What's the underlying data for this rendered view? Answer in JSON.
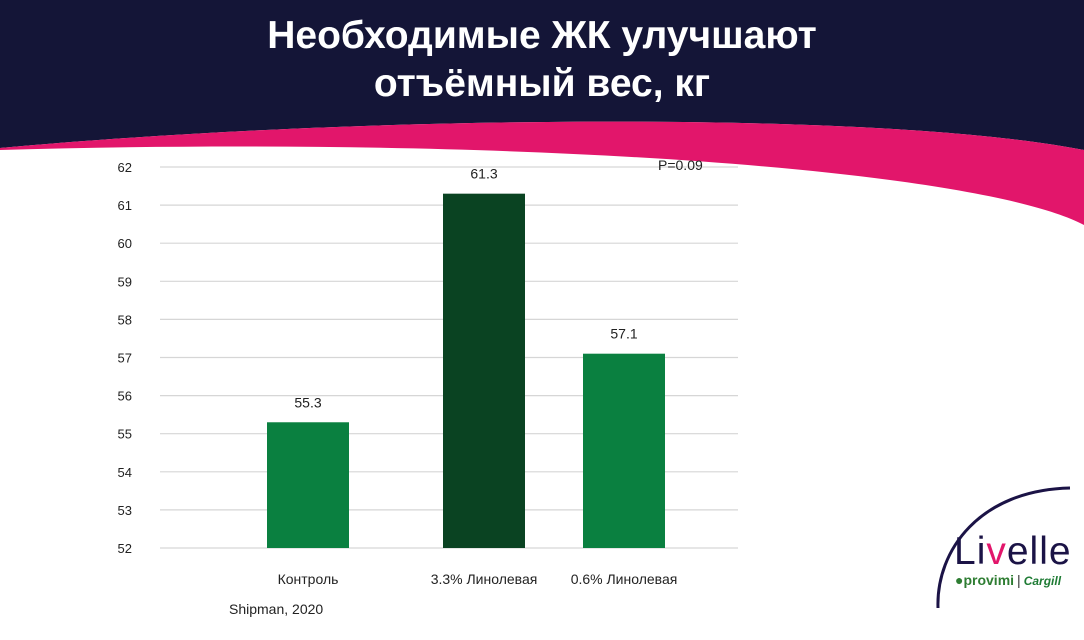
{
  "slide": {
    "title_line1": "Необходимые ЖК улучшают",
    "title_line2": "отъёмный вес, кг",
    "source": "Shipman, 2020"
  },
  "colors": {
    "header_bg": "#141537",
    "header_accent": "#e2166b",
    "bar_light": "#0a8040",
    "bar_dark": "#0a4322",
    "logo_arc": "#1b1346",
    "logo_accent": "#e2166b"
  },
  "chart_data": {
    "type": "bar",
    "categories": [
      "Контроль",
      "3.3% Линолевая",
      "0.6% Линолевая"
    ],
    "values": [
      55.3,
      61.3,
      57.1
    ],
    "data_labels": [
      "55.3",
      "61.3",
      "57.1"
    ],
    "bar_colors": [
      "#0a8040",
      "#0a4322",
      "#0a8040"
    ],
    "yticks": [
      "52",
      "53",
      "54",
      "55",
      "56",
      "57",
      "58",
      "59",
      "60",
      "61",
      "62"
    ],
    "ylim": [
      52,
      62
    ],
    "grid": true,
    "annotation": "P=0.09"
  },
  "logo": {
    "brand_prefix": "Li",
    "brand_suffix": "elle",
    "sub_left": "provimi",
    "sub_sep": "|",
    "sub_right": "Cargill"
  }
}
